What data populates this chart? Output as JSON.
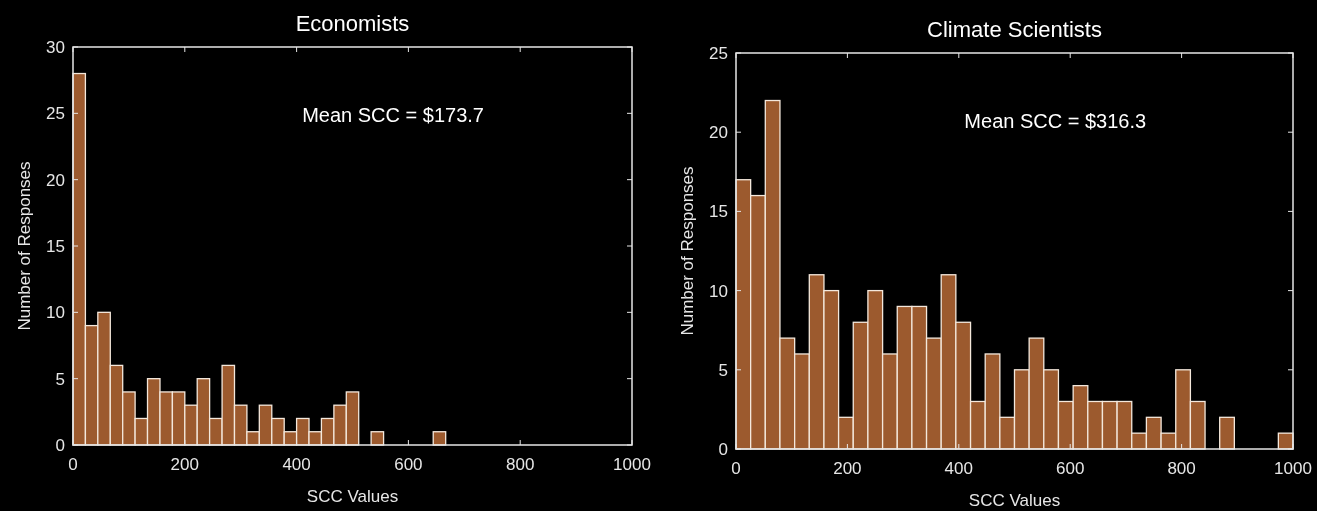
{
  "chart_data": [
    {
      "type": "histogram",
      "title": "Economists",
      "xlabel": "SCC Values",
      "ylabel": "Number of Responses",
      "annotations": [
        "Mean SCC = $173.7"
      ],
      "color": "#9c5a2e",
      "bins": [
        0,
        22.2,
        44.4,
        66.7,
        88.9,
        111.1,
        133.3,
        155.6,
        177.8,
        200,
        222.2,
        244.4,
        266.7,
        288.9,
        311.1,
        333.3,
        355.6,
        377.8,
        400,
        422.2,
        444.4,
        466.7,
        488.9,
        511.1,
        533.3,
        555.6,
        577.8,
        600,
        622.2,
        644.4,
        666.7,
        688.9,
        711.1,
        733.3,
        755.6,
        777.8,
        800,
        822.2,
        844.4,
        866.7,
        888.9,
        911.1,
        933.3,
        955.6,
        977.8,
        1000
      ],
      "values": [
        28,
        9,
        10,
        6,
        4,
        2,
        5,
        4,
        4,
        3,
        5,
        2,
        6,
        3,
        1,
        3,
        2,
        1,
        2,
        1,
        2,
        3,
        4,
        0,
        1,
        0,
        0,
        0,
        0,
        1,
        0,
        0,
        0,
        0,
        0,
        0,
        0,
        0,
        0,
        0,
        0,
        0,
        0,
        0,
        0
      ],
      "xlim": [
        0,
        1000
      ],
      "xticks": [
        0,
        200,
        400,
        600,
        800,
        1000
      ],
      "ylim": [
        0,
        30
      ],
      "yticks": [
        0,
        5,
        10,
        15,
        20,
        25,
        30
      ],
      "grid": false
    },
    {
      "type": "histogram",
      "title": "Climate Scientists",
      "xlabel": "SCC Values",
      "ylabel": "Number of Responses",
      "annotations": [
        "Mean SCC = $316.3"
      ],
      "color": "#9c5a2e",
      "bins": [
        0,
        26.3,
        52.6,
        78.9,
        105.3,
        131.6,
        157.9,
        184.2,
        210.5,
        236.8,
        263.2,
        289.5,
        315.8,
        342.1,
        368.4,
        394.7,
        421.1,
        447.4,
        473.7,
        500,
        526.3,
        552.6,
        578.9,
        605.3,
        631.6,
        657.9,
        684.2,
        710.5,
        736.8,
        763.2,
        789.5,
        815.8,
        842.1,
        868.4,
        894.7,
        921.1,
        947.4,
        973.7,
        1000
      ],
      "values": [
        17,
        16,
        22,
        7,
        6,
        11,
        10,
        2,
        8,
        10,
        6,
        9,
        9,
        7,
        11,
        8,
        3,
        6,
        2,
        5,
        7,
        5,
        3,
        4,
        3,
        3,
        3,
        1,
        2,
        1,
        5,
        3,
        0,
        2,
        0,
        0,
        0,
        1
      ],
      "xlim": [
        0,
        1000
      ],
      "xticks": [
        0,
        200,
        400,
        600,
        800,
        1000
      ],
      "ylim": [
        0,
        25
      ],
      "yticks": [
        0,
        5,
        10,
        15,
        20,
        25
      ],
      "grid": false
    }
  ]
}
